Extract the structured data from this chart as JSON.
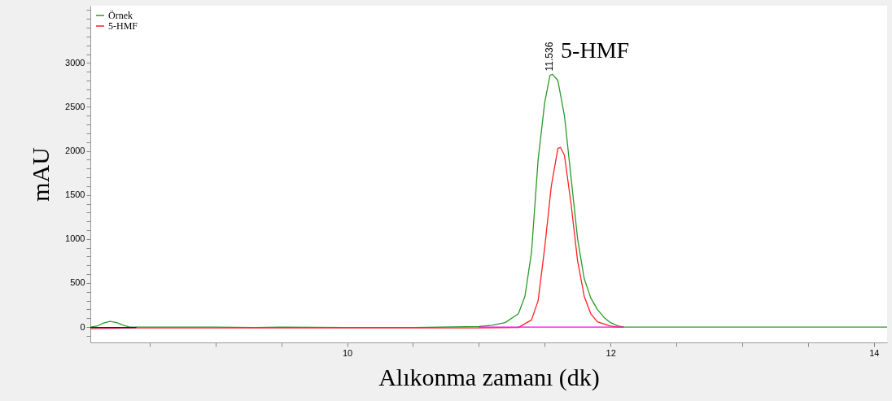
{
  "chart_data": {
    "type": "line",
    "xlabel": "Alıkonma zamanı (dk)",
    "ylabel": "mAU",
    "xlim": [
      8.05,
      14.1
    ],
    "ylim": [
      -175,
      3650
    ],
    "xticks": [
      {
        "value": 8.5,
        "label": null
      },
      {
        "value": 9,
        "label": null
      },
      {
        "value": 9.5,
        "label": null
      },
      10,
      {
        "value": 10.5,
        "label": null
      },
      {
        "value": 11,
        "label": null
      },
      {
        "value": 11.5,
        "label": null
      },
      12,
      {
        "value": 12.5,
        "label": null
      },
      {
        "value": 13,
        "label": null
      },
      {
        "value": 13.5,
        "label": null
      },
      14
    ],
    "yticks": [
      {
        "value": -100,
        "label": null
      },
      0,
      {
        "value": 100,
        "label": null
      },
      {
        "value": 200,
        "label": null
      },
      {
        "value": 300,
        "label": null
      },
      {
        "value": 400,
        "label": null
      },
      500,
      {
        "value": 600,
        "label": null
      },
      {
        "value": 700,
        "label": null
      },
      {
        "value": 800,
        "label": null
      },
      {
        "value": 900,
        "label": null
      },
      1000,
      {
        "value": 1100,
        "label": null
      },
      {
        "value": 1200,
        "label": null
      },
      {
        "value": 1300,
        "label": null
      },
      {
        "value": 1400,
        "label": null
      },
      1500,
      {
        "value": 1600,
        "label": null
      },
      {
        "value": 1700,
        "label": null
      },
      {
        "value": 1800,
        "label": null
      },
      {
        "value": 1900,
        "label": null
      },
      2000,
      {
        "value": 2100,
        "label": null
      },
      {
        "value": 2200,
        "label": null
      },
      {
        "value": 2300,
        "label": null
      },
      {
        "value": 2400,
        "label": null
      },
      2500,
      {
        "value": 2600,
        "label": null
      },
      {
        "value": 2700,
        "label": null
      },
      {
        "value": 2800,
        "label": null
      },
      {
        "value": 2900,
        "label": null
      },
      3000,
      {
        "value": 3100,
        "label": null
      },
      {
        "value": 3200,
        "label": null
      },
      {
        "value": 3300,
        "label": null
      },
      {
        "value": 3400,
        "label": null
      },
      {
        "value": 3500,
        "label": null
      },
      {
        "value": 3600,
        "label": null
      }
    ],
    "legend": "top left",
    "grid": false,
    "annotations": [
      {
        "text": "11.536",
        "x": 11.536,
        "y": 2870
      },
      {
        "text": "5-HMF",
        "x": 11.536,
        "y": 2870
      }
    ],
    "series": [
      {
        "name": "Örnek",
        "color": "#2a9a2a",
        "x": [
          8.05,
          8.1,
          8.15,
          8.2,
          8.25,
          8.3,
          8.35,
          9.0,
          9.3,
          9.5,
          10.0,
          10.5,
          11.0,
          11.1,
          11.2,
          11.3,
          11.35,
          11.4,
          11.45,
          11.5,
          11.54,
          11.56,
          11.6,
          11.65,
          11.7,
          11.75,
          11.8,
          11.85,
          11.9,
          11.95,
          12.0,
          12.05,
          12.1,
          14.1
        ],
        "values": [
          0,
          10,
          45,
          65,
          50,
          20,
          0,
          0,
          -5,
          0,
          -5,
          -5,
          5,
          20,
          50,
          150,
          350,
          850,
          1900,
          2550,
          2860,
          2870,
          2800,
          2400,
          1700,
          1000,
          550,
          330,
          200,
          110,
          50,
          15,
          0,
          0
        ]
      },
      {
        "name": "5-HMF",
        "color": "#ff2020",
        "x": [
          8.05,
          8.4,
          9.0,
          10.0,
          11.0,
          11.3,
          11.4,
          11.45,
          11.5,
          11.55,
          11.6,
          11.62,
          11.65,
          11.7,
          11.75,
          11.8,
          11.85,
          11.9,
          12.0,
          12.05,
          12.1
        ],
        "values": [
          -20,
          -10,
          -10,
          -10,
          -10,
          -5,
          80,
          300,
          900,
          1600,
          2030,
          2040,
          1950,
          1400,
          750,
          350,
          150,
          60,
          10,
          0,
          0
        ]
      },
      {
        "color": "#ff00ff",
        "x": [
          11.0,
          12.1
        ],
        "values": [
          0,
          0
        ]
      },
      {
        "color": "#0000ff",
        "x": [
          8.05,
          8.4
        ],
        "values": [
          -5,
          -5
        ]
      }
    ]
  }
}
